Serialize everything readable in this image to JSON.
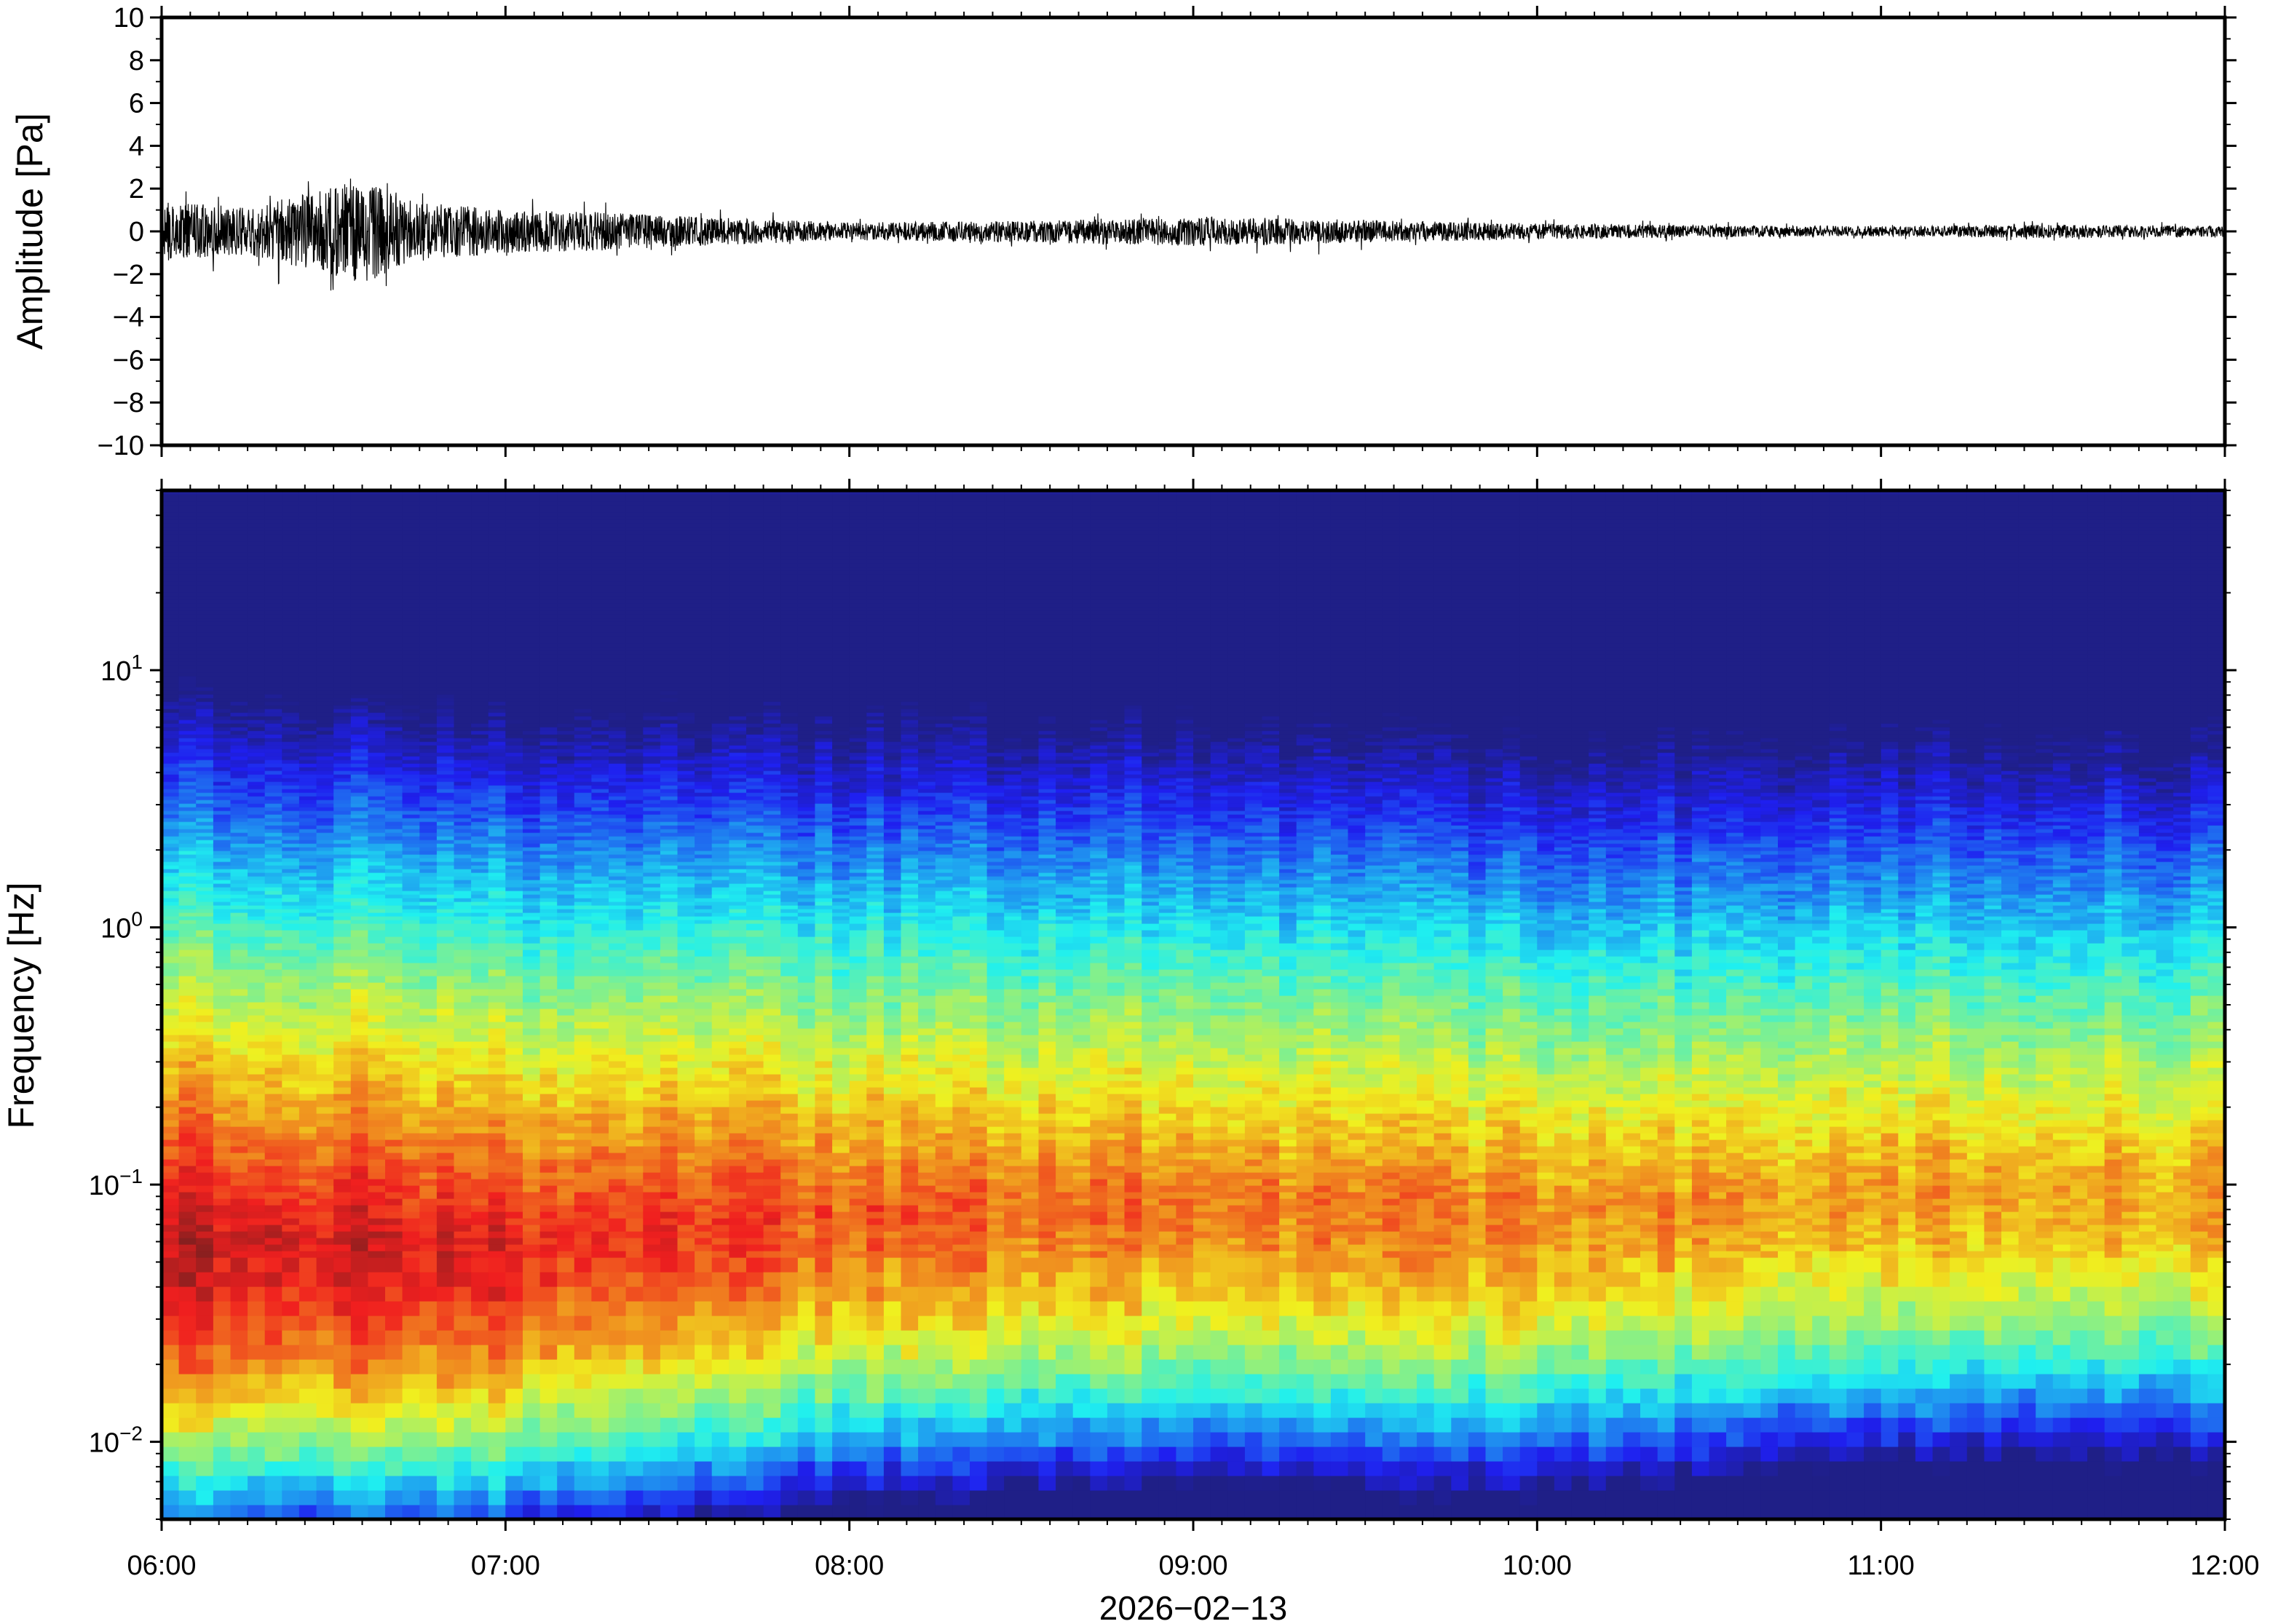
{
  "chart_data": [
    {
      "type": "line",
      "panel": "waveform",
      "ylabel": "Amplitude [Pa]",
      "ylim": [
        -10,
        10
      ],
      "yticks": [
        -10,
        -8,
        -6,
        -4,
        -2,
        0,
        2,
        4,
        6,
        8,
        10
      ],
      "ytick_labels": [
        "−10",
        "−8",
        "−6",
        "−4",
        "−2",
        "0",
        "2",
        "4",
        "6",
        "8",
        "10"
      ],
      "xlim": [
        "06:00",
        "12:00"
      ],
      "envelope": {
        "x": [
          "06:00",
          "06:15",
          "06:25",
          "06:35",
          "06:45",
          "07:00",
          "07:15",
          "07:30",
          "08:00",
          "08:30",
          "09:00",
          "09:30",
          "10:00",
          "10:30",
          "11:00",
          "11:30",
          "12:00"
        ],
        "upper": [
          2.3,
          1.8,
          2.5,
          3.2,
          2.2,
          1.6,
          1.5,
          1.2,
          0.7,
          0.8,
          0.9,
          0.7,
          0.6,
          0.45,
          0.4,
          0.5,
          0.4
        ],
        "lower": [
          -2.1,
          -1.8,
          -3.0,
          -4.5,
          -2.2,
          -1.6,
          -1.4,
          -1.1,
          -0.6,
          -0.8,
          -1.3,
          -1.0,
          -0.6,
          -0.45,
          -0.35,
          -0.5,
          -0.4
        ]
      },
      "color": "#000000"
    },
    {
      "type": "heatmap",
      "panel": "spectrogram",
      "ylabel": "Frequency [Hz]",
      "yscale": "log",
      "ylim": [
        0.005,
        50
      ],
      "yticks": [
        0.01,
        0.1,
        1,
        10
      ],
      "ytick_labels": [
        {
          "base": "10",
          "exp": "−2"
        },
        {
          "base": "10",
          "exp": "−1"
        },
        {
          "base": "10",
          "exp": "0"
        },
        {
          "base": "10",
          "exp": "1"
        }
      ],
      "xlim": [
        "06:00",
        "12:00"
      ],
      "colormap": "jet",
      "description_levels_by_time": {
        "times": [
          "06:00",
          "07:00",
          "08:00",
          "09:00",
          "10:00",
          "11:00",
          "12:00"
        ],
        "peak_band_hz": [
          0.06,
          0.06,
          0.08,
          0.09,
          0.08,
          0.1,
          0.1
        ],
        "relative_peak_level": [
          0.95,
          0.88,
          0.8,
          0.78,
          0.76,
          0.72,
          0.72
        ]
      }
    }
  ],
  "shared_x": {
    "ticks": [
      "06:00",
      "07:00",
      "08:00",
      "09:00",
      "10:00",
      "11:00",
      "12:00"
    ],
    "date_label": "2026−02−13"
  }
}
